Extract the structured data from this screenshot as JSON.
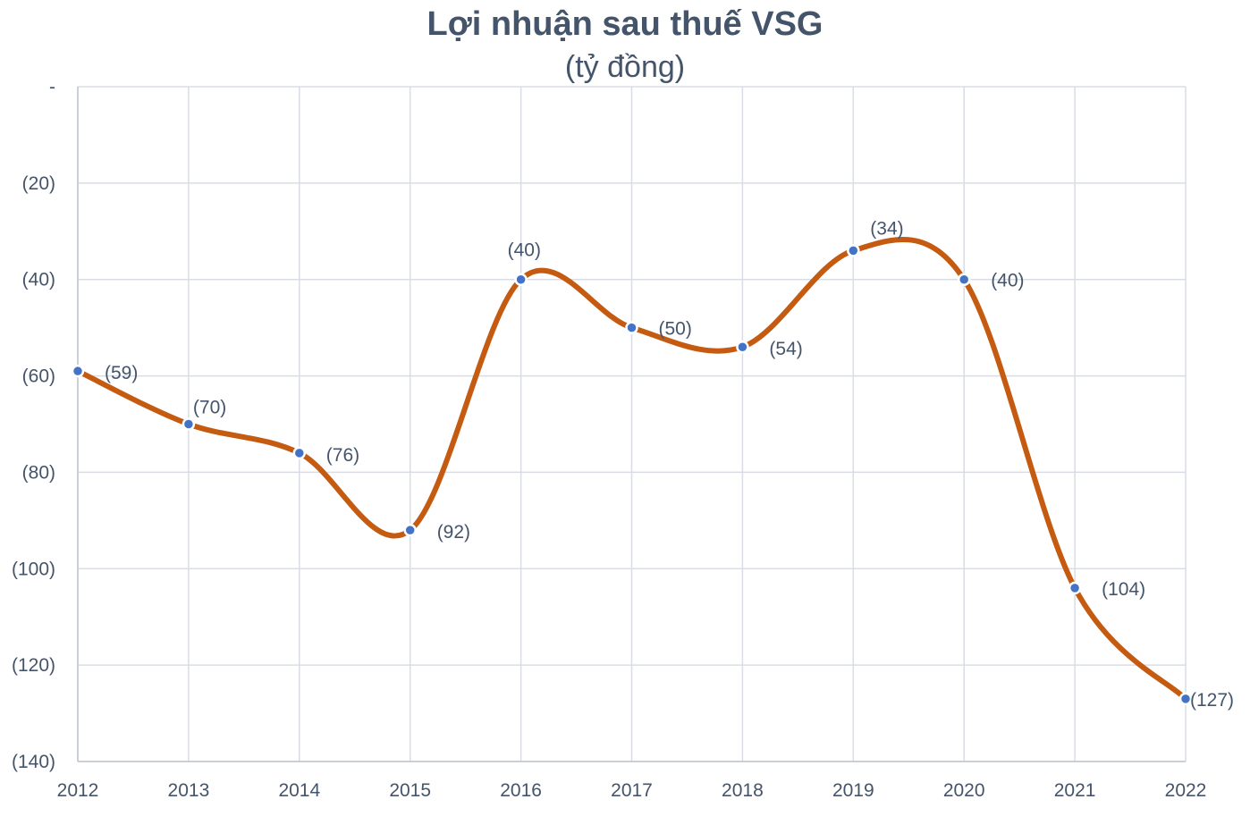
{
  "chart_data": {
    "type": "line",
    "title": "Lợi nhuận sau thuế VSG",
    "subtitle": "(tỷ đồng)",
    "categories": [
      "2012",
      "2013",
      "2014",
      "2015",
      "2016",
      "2017",
      "2018",
      "2019",
      "2020",
      "2021",
      "2022"
    ],
    "series": [
      {
        "values": [
          -59,
          -70,
          -76,
          -92,
          -40,
          -50,
          -54,
          -34,
          -40,
          -104,
          -127
        ],
        "labels": [
          "(59)",
          "(70)",
          "(76)",
          "(92)",
          "(40)",
          "(50)",
          "(54)",
          "(34)",
          "(40)",
          "(104)",
          "(127)"
        ],
        "color": "#c55a11",
        "marker_color": "#4472c4",
        "smooth": true
      }
    ],
    "ylim": [
      -140,
      0
    ],
    "yticks": [
      0,
      -20,
      -40,
      -60,
      -80,
      -100,
      -120,
      -140
    ],
    "ytick_labels": [
      "-",
      "(20)",
      "(40)",
      "(60)",
      "(80)",
      "(100)",
      "(120)",
      "(140)"
    ],
    "grid": true,
    "grid_color": "#d9dde3",
    "legend": "none"
  }
}
